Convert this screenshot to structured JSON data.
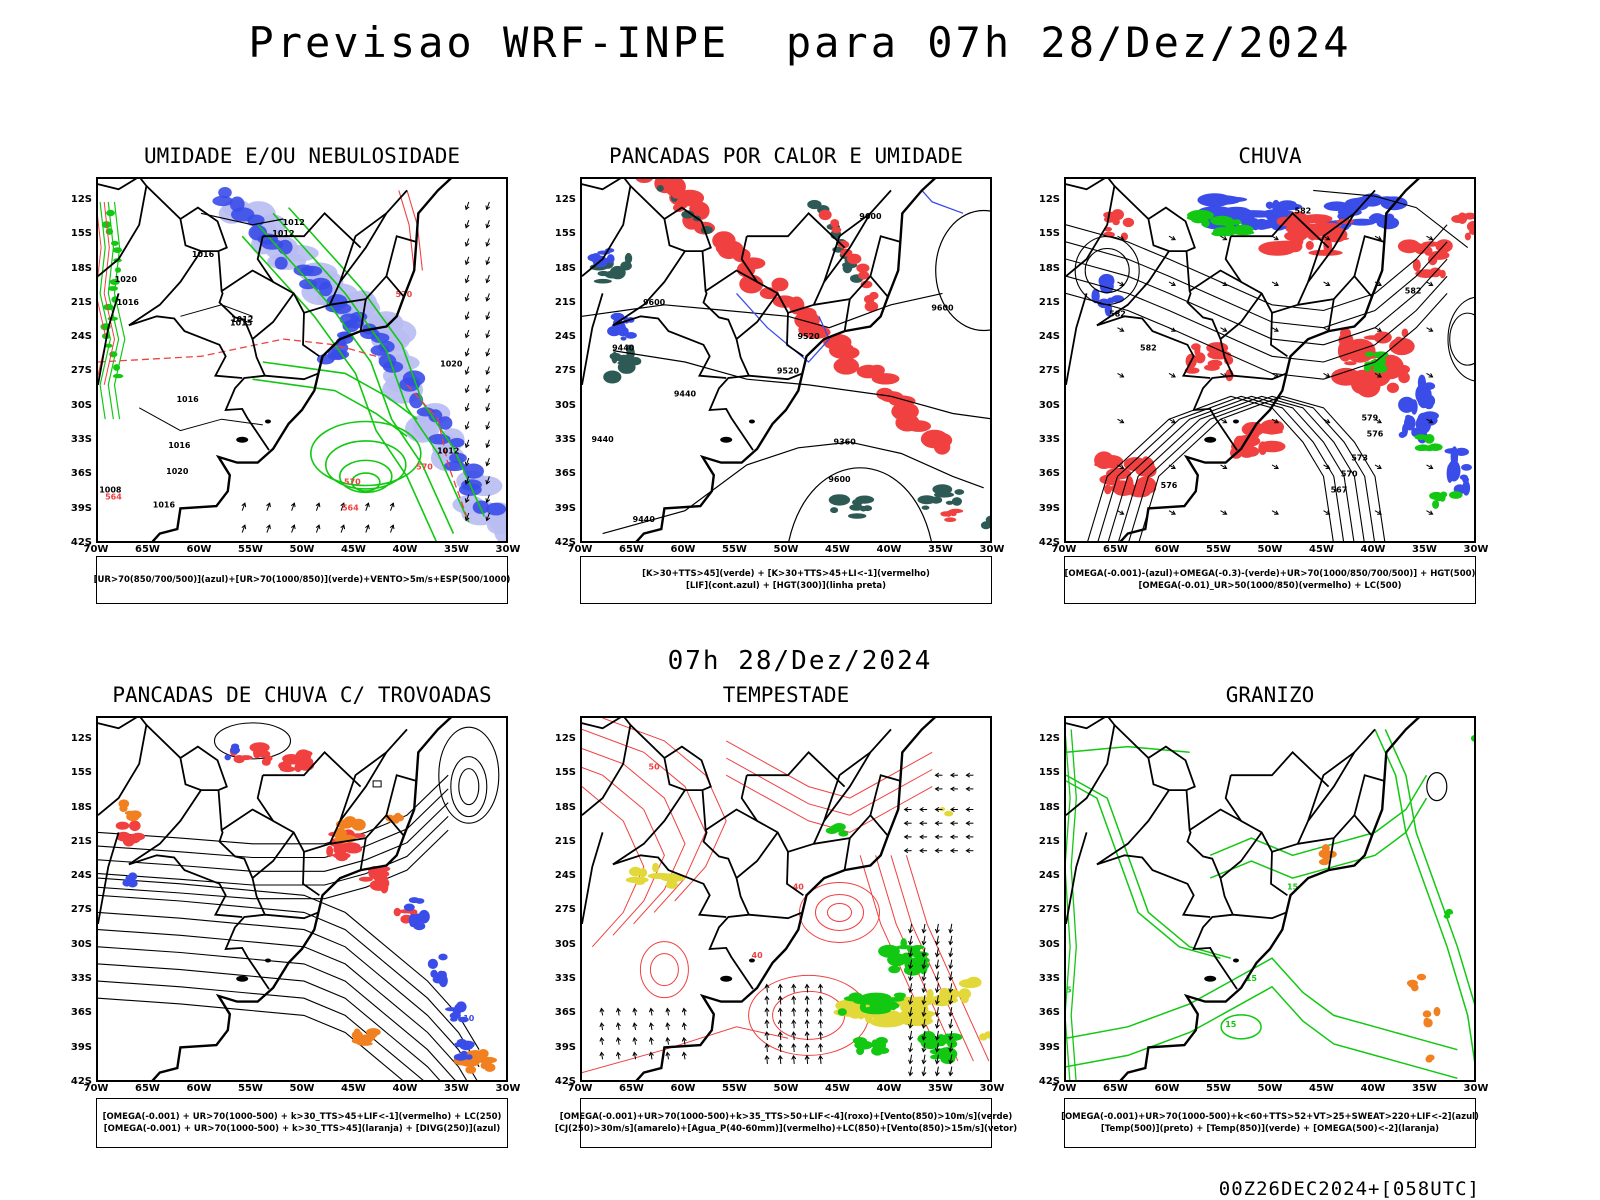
{
  "title": "Previsao WRF-INPE  para 07h 28/Dez/2024",
  "subtitle": "07h 28/Dez/2024",
  "footer": "00Z26DEC2024+[058UTC]",
  "lat_labels": [
    "12S",
    "15S",
    "18S",
    "21S",
    "24S",
    "27S",
    "30S",
    "33S",
    "36S",
    "39S",
    "42S"
  ],
  "lon_labels": [
    "70W",
    "65W",
    "60W",
    "55W",
    "50W",
    "45W",
    "40W",
    "35W",
    "30W"
  ],
  "colors": {
    "blue": "#3a4de8",
    "light_blue": "#b8bdf2",
    "green": "#12c812",
    "red": "#f04040",
    "dark_teal": "#2e5a55",
    "orange": "#f08020",
    "yellow": "#e2d83a",
    "black": "#000000"
  },
  "panels": [
    {
      "title": "UMIDADE E/OU NEBULOSIDADE",
      "legend": [
        "[UR>70(850/700/500)](azul)+[UR>70(1000/850)](verde)+VENTO>5m/s+ESP(500/1000)"
      ],
      "contour_labels": [
        "1012",
        "1012",
        "1016",
        "1020",
        "1016",
        "1012",
        "1015",
        "1016",
        "1016",
        "1020",
        "1008",
        "1016",
        "1020",
        "1012",
        "570",
        "570",
        "564",
        "564",
        "570"
      ]
    },
    {
      "title": "PANCADAS POR CALOR E UMIDADE",
      "legend": [
        "[K>30+TTS>45](verde) + [K>30+TTS>45+LI<-1](vermelho)",
        "[LIF](cont.azul) + [HGT(300)](linha preta)"
      ],
      "contour_labels": [
        "9600",
        "9600",
        "9600",
        "9520",
        "9520",
        "9440",
        "9440",
        "9440",
        "9360",
        "9600",
        "9440"
      ]
    },
    {
      "title": "CHUVA",
      "legend": [
        "[OMEGA(-0.001)-(azul)+OMEGA(-0.3)-(verde)+UR>70(1000/850/700/500)] + HGT(500)",
        "[OMEGA(-0.01)_UR>50(1000/850)(vermelho) + LC(500)"
      ],
      "contour_labels": [
        "582",
        "582",
        "582",
        "579",
        "576",
        "573",
        "570",
        "567",
        "576",
        "582"
      ]
    },
    {
      "title": "PANCADAS DE CHUVA C/ TROVOADAS",
      "legend": [
        "[OMEGA(-0.001) + UR>70(1000-500) + k>30_TTS>45+LIF<-1](vermelho) + LC(250)",
        "[OMEGA(-0.001) + UR>70(1000-500) + k>30_TTS>45](laranja) + [DIVG(250)](azul)"
      ],
      "contour_labels": [
        "10"
      ]
    },
    {
      "title": "TEMPESTADE",
      "legend": [
        "[OMEGA(-0.001)+UR>70(1000-500)+k>35_TTS>50+LIF<-4](roxo)+[Vento(850)>10m/s](verde)",
        "[CJ(250)>30m/s](amarelo)+[Agua_P(40-60mm)](vermelho)+LC(850)+[Vento(850)>15m/s](vetor)"
      ],
      "contour_labels": [
        "50",
        "40",
        "40"
      ]
    },
    {
      "title": "GRANIZO",
      "legend": [
        "[OMEGA(-0.001)+UR>70(1000-500)+k<60+TTS>52+VT>25+SWEAT>220+LIF<-2](azul)",
        "[Temp(500)](preto) + [Temp(850)](verde) + [OMEGA(500)<-2](laranja)"
      ],
      "contour_labels": [
        "15",
        "15",
        "15",
        "15"
      ]
    }
  ]
}
